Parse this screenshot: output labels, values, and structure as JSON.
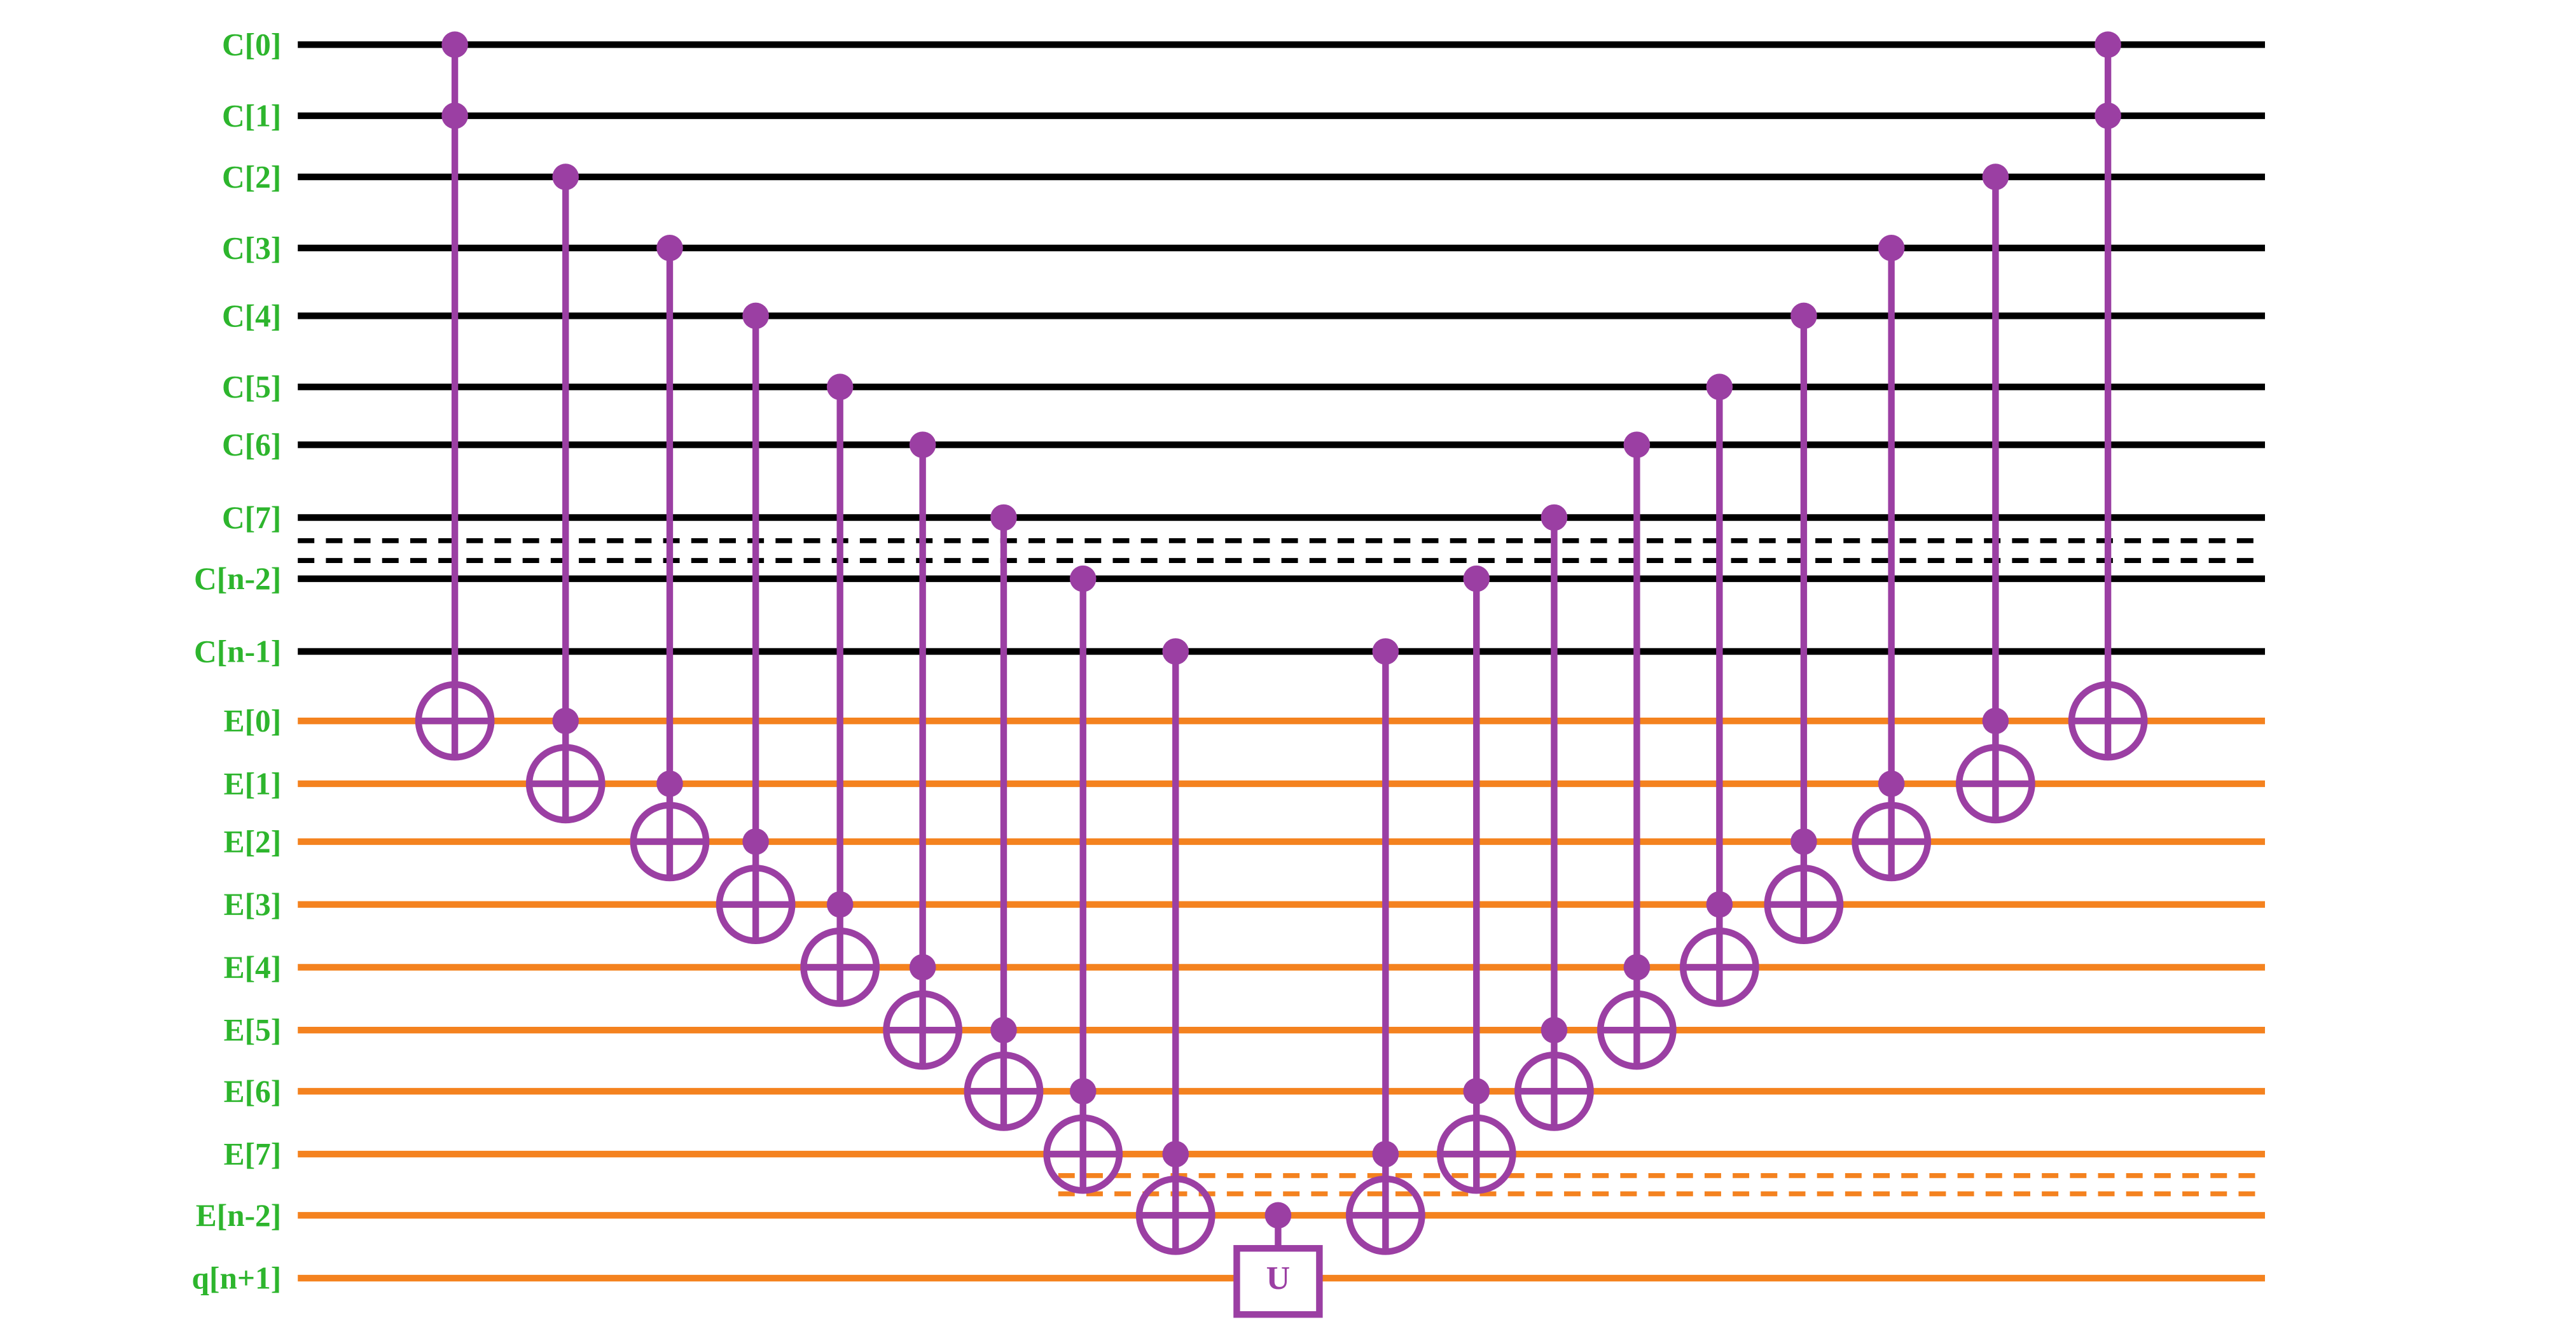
{
  "wires": [
    {
      "label": "C[0]"
    },
    {
      "label": "C[1]"
    },
    {
      "label": "C[2]"
    },
    {
      "label": "C[3]"
    },
    {
      "label": "C[4]"
    },
    {
      "label": "C[5]"
    },
    {
      "label": "C[6]"
    },
    {
      "label": "C[7]"
    },
    {
      "label": "C[n-2]"
    },
    {
      "label": "C[n-1]"
    },
    {
      "label": "E[0]"
    },
    {
      "label": "E[1]"
    },
    {
      "label": "E[2]"
    },
    {
      "label": "E[3]"
    },
    {
      "label": "E[4]"
    },
    {
      "label": "E[5]"
    },
    {
      "label": "E[6]"
    },
    {
      "label": "E[7]"
    },
    {
      "label": "E[n-2]"
    },
    {
      "label": "q[n+1]"
    }
  ],
  "gate": {
    "label": "U"
  }
}
